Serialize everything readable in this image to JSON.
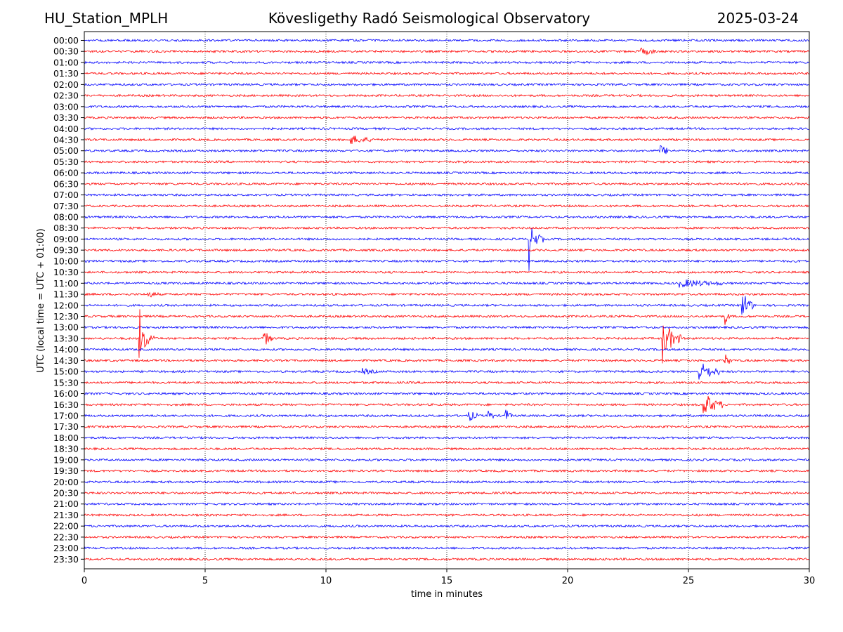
{
  "header": {
    "station": "HU_Station_MPLH",
    "observatory": "Kövesligethy Radó Seismological Observatory",
    "date": "2025-03-24"
  },
  "chart_data": {
    "type": "line",
    "title": "Kövesligethy Radó Seismological Observatory",
    "xlabel": "time in minutes",
    "ylabel": "UTC (local time = UTC + 01:00)",
    "xlim": [
      0,
      30
    ],
    "xticks": [
      "0",
      "5",
      "10",
      "15",
      "20",
      "25",
      "30"
    ],
    "grid": "vertical dotted at x ticks",
    "colors": {
      "even_rows": "#0000ff",
      "odd_rows": "#ff0000"
    },
    "rows": [
      "00:00",
      "00:30",
      "01:00",
      "01:30",
      "02:00",
      "02:30",
      "03:00",
      "03:30",
      "04:00",
      "04:30",
      "05:00",
      "05:30",
      "06:00",
      "06:30",
      "07:00",
      "07:30",
      "08:00",
      "08:30",
      "09:00",
      "09:30",
      "10:00",
      "10:30",
      "11:00",
      "11:30",
      "12:00",
      "12:30",
      "13:00",
      "13:30",
      "14:00",
      "14:30",
      "15:00",
      "15:30",
      "16:00",
      "16:30",
      "17:00",
      "17:30",
      "18:00",
      "18:30",
      "19:00",
      "19:30",
      "20:00",
      "20:30",
      "21:00",
      "21:30",
      "22:00",
      "22:30",
      "23:00",
      "23:30"
    ],
    "events": [
      {
        "row": 1,
        "time": 23.0,
        "duration": 0.8,
        "amp": 0.35
      },
      {
        "row": 9,
        "time": 11.0,
        "duration": 1.0,
        "amp": 0.45
      },
      {
        "row": 10,
        "time": 23.8,
        "duration": 0.5,
        "amp": 0.6
      },
      {
        "row": 18,
        "time": 18.4,
        "duration": 0.1,
        "amp": 4.0
      },
      {
        "row": 18,
        "time": 18.5,
        "duration": 0.5,
        "amp": 1.2
      },
      {
        "row": 22,
        "time": 24.6,
        "duration": 1.8,
        "amp": 0.4
      },
      {
        "row": 23,
        "time": 2.6,
        "duration": 0.5,
        "amp": 0.3
      },
      {
        "row": 24,
        "time": 27.2,
        "duration": 0.5,
        "amp": 1.5
      },
      {
        "row": 25,
        "time": 26.5,
        "duration": 0.2,
        "amp": 1.0
      },
      {
        "row": 27,
        "time": 2.25,
        "duration": 0.1,
        "amp": 6.5
      },
      {
        "row": 27,
        "time": 2.3,
        "duration": 0.6,
        "amp": 1.6
      },
      {
        "row": 27,
        "time": 7.4,
        "duration": 0.4,
        "amp": 0.9
      },
      {
        "row": 27,
        "time": 23.9,
        "duration": 0.1,
        "amp": 5.0
      },
      {
        "row": 27,
        "time": 24.0,
        "duration": 0.7,
        "amp": 1.6
      },
      {
        "row": 29,
        "time": 26.5,
        "duration": 0.3,
        "amp": 0.7
      },
      {
        "row": 30,
        "time": 11.5,
        "duration": 0.6,
        "amp": 0.3
      },
      {
        "row": 30,
        "time": 25.4,
        "duration": 0.9,
        "amp": 1.1
      },
      {
        "row": 33,
        "time": 25.6,
        "duration": 0.8,
        "amp": 1.3
      },
      {
        "row": 34,
        "time": 15.9,
        "duration": 0.4,
        "amp": 0.6
      },
      {
        "row": 34,
        "time": 16.7,
        "duration": 0.3,
        "amp": 0.6
      },
      {
        "row": 34,
        "time": 17.4,
        "duration": 0.3,
        "amp": 0.8
      }
    ]
  }
}
